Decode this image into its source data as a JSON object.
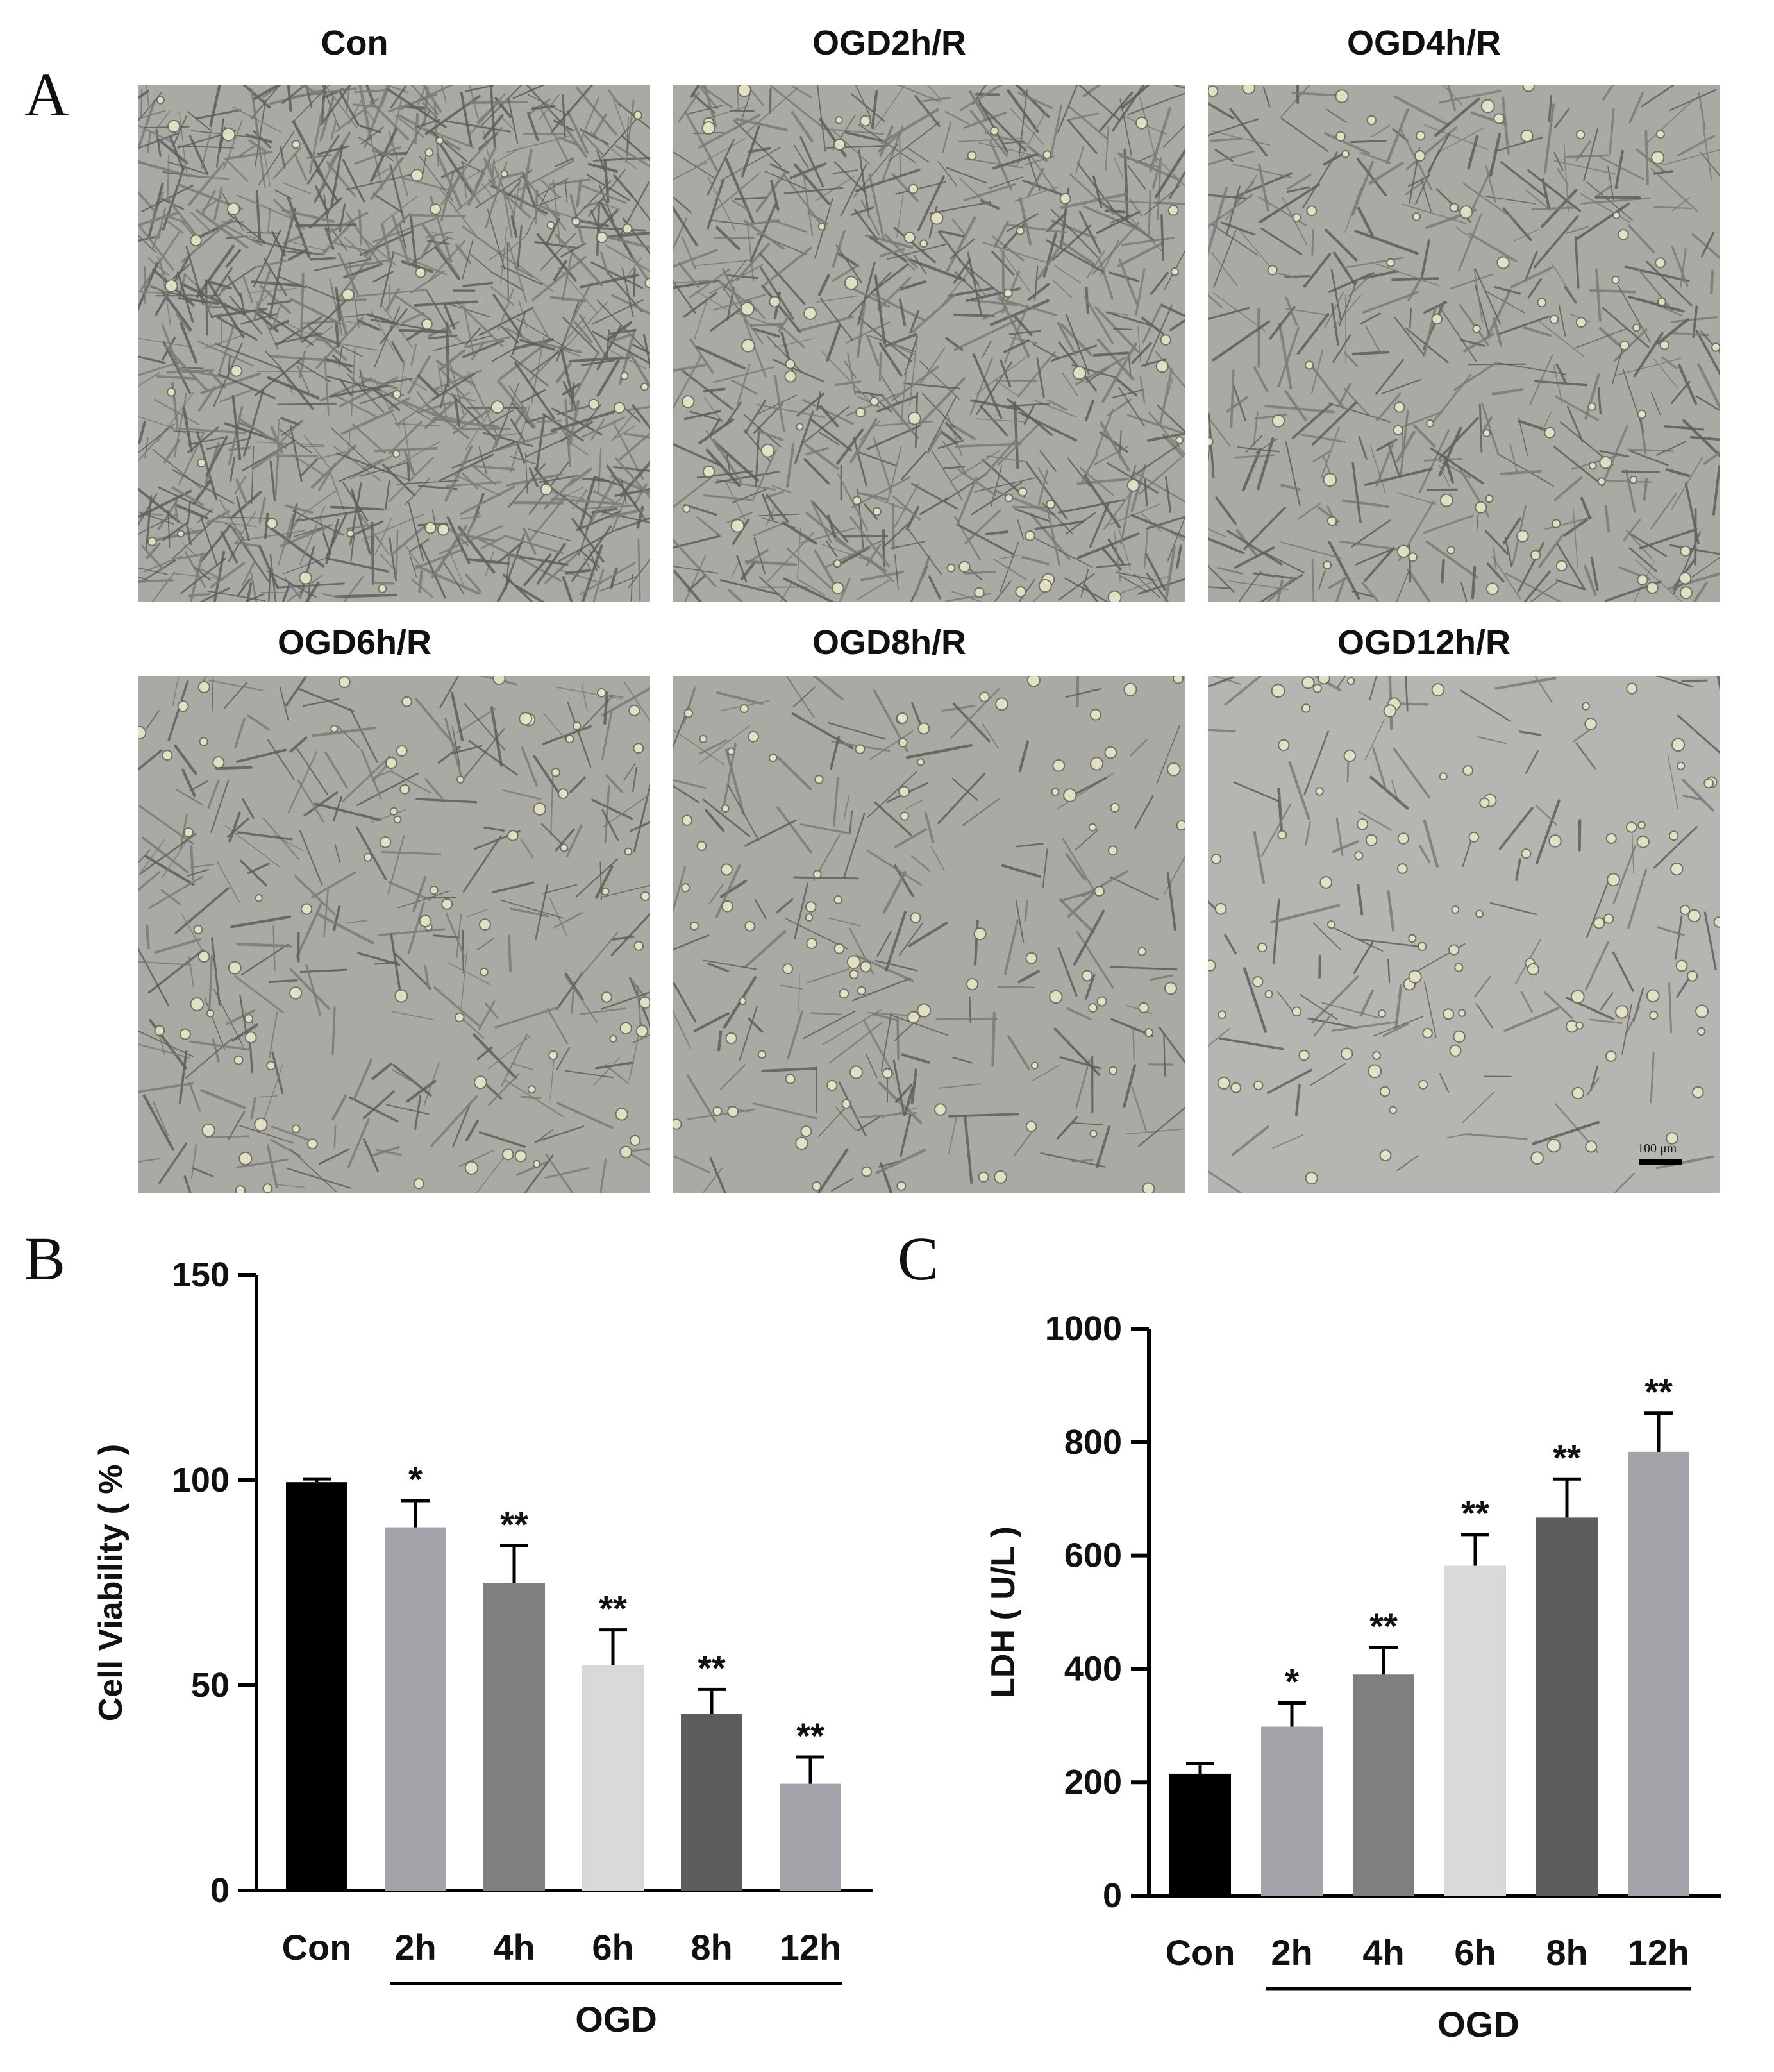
{
  "panel_labels": {
    "a": "A",
    "b": "B",
    "c": "C"
  },
  "micrographs": {
    "titles": [
      "Con",
      "OGD2h/R",
      "OGD4h/R",
      "OGD6h/R",
      "OGD8h/R",
      "OGD12h/R"
    ],
    "cell_density": [
      1.0,
      0.8,
      0.62,
      0.5,
      0.38,
      0.26
    ],
    "scale_bar_label": "100 μm"
  },
  "chart_data": [
    {
      "type": "bar",
      "panel": "B",
      "categories": [
        "Con",
        "2h",
        "4h",
        "6h",
        "8h",
        "12h"
      ],
      "values": [
        99.5,
        88.5,
        75,
        55,
        43,
        26
      ],
      "errors": [
        0.8,
        6.5,
        9,
        8.5,
        6,
        6.5
      ],
      "significance": [
        "",
        "*",
        "**",
        "**",
        "**",
        "**"
      ],
      "colors": [
        "#000000",
        "#a3a3a9",
        "#7f7f7f",
        "#d9d9d9",
        "#5d5d5d",
        "#a3a3a9"
      ],
      "ylabel": "Cell Viability ( % )",
      "ylim": [
        0,
        150
      ],
      "yticks": [
        "0",
        "50",
        "100",
        "150"
      ],
      "group_label": "OGD"
    },
    {
      "type": "bar",
      "panel": "C",
      "categories": [
        "Con",
        "2h",
        "4h",
        "6h",
        "8h",
        "12h"
      ],
      "values": [
        215,
        298,
        390,
        582,
        667,
        783
      ],
      "errors": [
        18,
        42,
        48,
        55,
        68,
        68
      ],
      "significance": [
        "",
        "*",
        "**",
        "**",
        "**",
        "**"
      ],
      "colors": [
        "#000000",
        "#a3a3a9",
        "#7f7f7f",
        "#d9d9d9",
        "#5d5d5d",
        "#a3a3a9"
      ],
      "ylabel": "LDH ( U/L )",
      "ylim": [
        0,
        1000
      ],
      "yticks": [
        "0",
        "200",
        "400",
        "600",
        "800",
        "1000"
      ],
      "group_label": "OGD"
    }
  ]
}
